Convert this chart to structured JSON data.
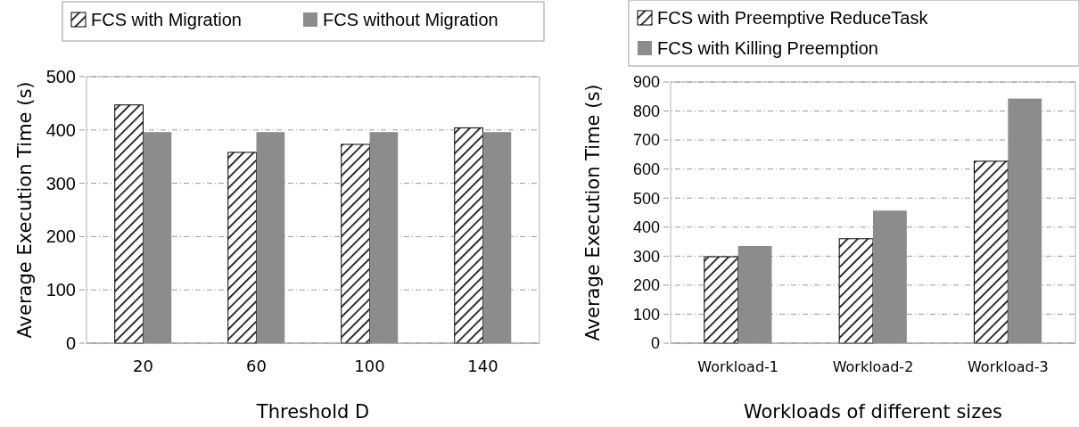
{
  "chart_data": [
    {
      "type": "bar",
      "xlabel": "Threshold D",
      "ylabel": "Average Execution Time (s)",
      "categories": [
        "20",
        "60",
        "100",
        "140"
      ],
      "series": [
        {
          "name": "FCS with Migration",
          "color": "#000000",
          "values": [
            447,
            358,
            373,
            404
          ]
        },
        {
          "name": "FCS without Migration",
          "color": "#8c8c8c",
          "values": [
            396,
            396,
            396,
            396
          ]
        }
      ],
      "ylim": [
        0,
        500
      ],
      "yticks": [
        0,
        100,
        200,
        300,
        400,
        500
      ],
      "grid": "y",
      "legend": "top"
    },
    {
      "type": "bar",
      "xlabel": "Workloads of different sizes",
      "ylabel": "Average Execution Time (s)",
      "categories": [
        "Workload-1",
        "Workload-2",
        "Workload-3"
      ],
      "series": [
        {
          "name": "FCS with Preemptive ReduceTask",
          "color": "#000000",
          "values": [
            298,
            360,
            627
          ]
        },
        {
          "name": "FCS with Killing Preemption",
          "color": "#8c8c8c",
          "values": [
            335,
            457,
            843
          ]
        }
      ],
      "ylim": [
        0,
        900
      ],
      "yticks": [
        0,
        100,
        200,
        300,
        400,
        500,
        600,
        700,
        800,
        900
      ],
      "grid": "y",
      "legend": "top"
    }
  ]
}
